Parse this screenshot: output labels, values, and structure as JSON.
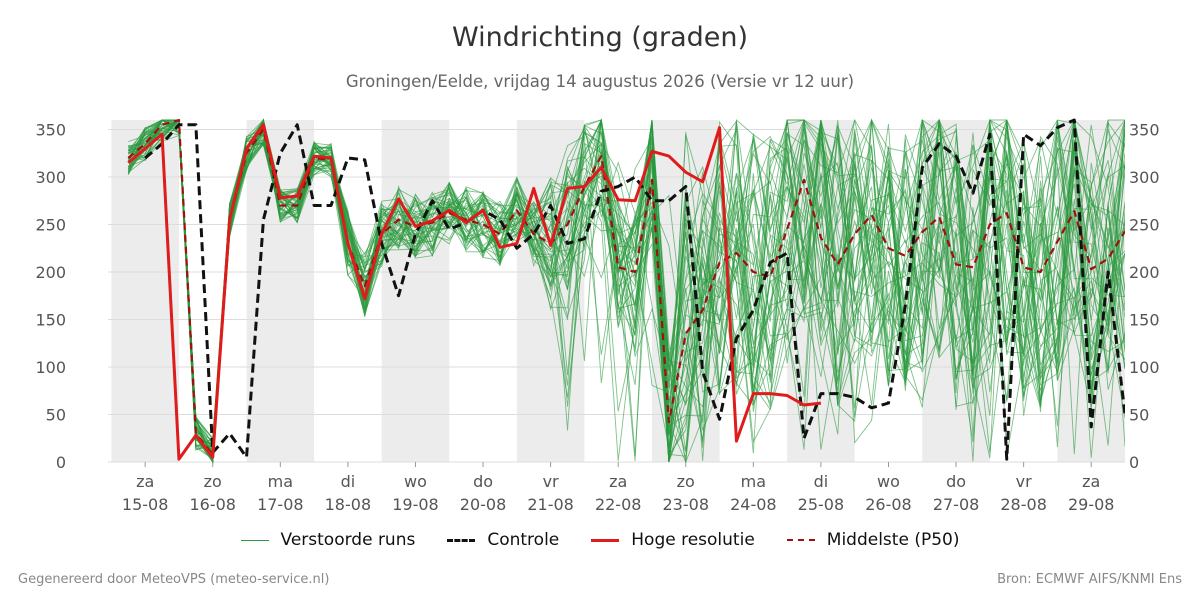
{
  "colors": {
    "ensemble": "#2a9a3d",
    "control": "#111111",
    "hires": "#e01b1b",
    "median": "#a01010",
    "weekend_band": "#ececec",
    "grid": "#dddddd"
  },
  "footer": {
    "left": "Gegenereerd door MeteoVPS (meteo-service.nl)",
    "right": "Bron: ECMWF AIFS/KNMI Ens"
  },
  "chart_data": {
    "type": "line",
    "title": "Windrichting (graden)",
    "subtitle": "Groningen/Eelde, vrijdag 14 augustus 2026 (Versie vr 12 uur)",
    "xlabel": "",
    "ylabel": "",
    "ylim": [
      0,
      360
    ],
    "yticks": [
      0,
      50,
      100,
      150,
      200,
      250,
      300,
      350
    ],
    "grid": true,
    "legend_position": "bottom",
    "x_range_days": [
      -0.25,
      14.5
    ],
    "day_ticks": [
      {
        "day": "za",
        "date": "15-08"
      },
      {
        "day": "zo",
        "date": "16-08"
      },
      {
        "day": "ma",
        "date": "17-08"
      },
      {
        "day": "di",
        "date": "18-08"
      },
      {
        "day": "wo",
        "date": "19-08"
      },
      {
        "day": "do",
        "date": "20-08"
      },
      {
        "day": "vr",
        "date": "21-08"
      },
      {
        "day": "za",
        "date": "22-08"
      },
      {
        "day": "zo",
        "date": "23-08"
      },
      {
        "day": "ma",
        "date": "24-08"
      },
      {
        "day": "di",
        "date": "25-08"
      },
      {
        "day": "wo",
        "date": "26-08"
      },
      {
        "day": "do",
        "date": "27-08"
      },
      {
        "day": "vr",
        "date": "28-08"
      },
      {
        "day": "za",
        "date": "29-08"
      }
    ],
    "shaded_days": [
      0,
      2,
      4,
      6,
      8,
      10,
      12,
      14
    ],
    "series": [
      {
        "name": "Verstoorde runs",
        "style": "ensemble",
        "values": [
          [
            318,
            330,
            355,
            5,
            20,
            10,
            260,
            340,
            350,
            10,
            270,
            275,
            310,
            320,
            230,
            185,
            240,
            255,
            248,
            252,
            262,
            255,
            250,
            240,
            265,
            245,
            240,
            275,
            280,
            290,
            240,
            230,
            250,
            220,
            200,
            210,
            190,
            230,
            240,
            200,
            210,
            220,
            250,
            230,
            240,
            220,
            230,
            250,
            240,
            200,
            230,
            250,
            240,
            230,
            220,
            250,
            230,
            240
          ]
        ],
        "note": "Ensemble members (many thin lines); values generated deterministically in script around the median."
      },
      {
        "name": "Controle",
        "style": "control",
        "values": [
          320,
          335,
          355,
          355,
          10,
          30,
          5,
          255,
          325,
          355,
          270,
          270,
          320,
          318,
          230,
          175,
          240,
          275,
          245,
          252,
          265,
          255,
          225,
          240,
          270,
          230,
          235,
          285,
          290,
          300,
          275,
          275,
          290,
          95,
          45,
          130,
          160,
          210,
          220,
          25,
          72,
          72,
          68,
          57,
          62,
          165,
          310,
          335,
          322,
          283,
          345,
          3,
          345,
          333,
          352,
          360,
          37,
          200,
          50,
          36,
          82,
          78,
          93
        ],
        "x": [
          0.0,
          0.25,
          0.5,
          0.75,
          1.0,
          1.25,
          1.5,
          1.75,
          2.0,
          2.25,
          2.5,
          2.75,
          3.0,
          3.25,
          3.5,
          3.75,
          4.0,
          4.25,
          4.5,
          4.75,
          5.0,
          5.25,
          5.5,
          5.75,
          6.0,
          6.25,
          6.5,
          6.75,
          7.0,
          7.25,
          7.5,
          7.75,
          8.0,
          8.25,
          8.5,
          8.75,
          9.0,
          9.25,
          9.5,
          9.75,
          10.0,
          10.25,
          10.5,
          10.75,
          11.0,
          11.25,
          11.5,
          11.75,
          12.0,
          12.25,
          12.5,
          12.75,
          13.0,
          13.25,
          13.5,
          13.75,
          14.0,
          14.25,
          14.5,
          14.75,
          15.0,
          15.25,
          15.5
        ]
      },
      {
        "name": "Hoge resolutie",
        "style": "hires",
        "values": [
          315,
          330,
          345,
          3,
          28,
          5,
          255,
          330,
          355,
          278,
          280,
          322,
          320,
          230,
          172,
          240,
          277,
          248,
          254,
          265,
          252,
          265,
          226,
          230,
          288,
          228,
          288,
          290,
          310,
          276,
          275,
          327,
          322,
          305,
          295,
          352,
          22,
          72,
          72,
          70,
          60,
          62
        ],
        "x": [
          -0.25,
          0.0,
          0.25,
          0.5,
          0.75,
          1.0,
          1.25,
          1.5,
          1.75,
          2.0,
          2.25,
          2.5,
          2.75,
          3.0,
          3.25,
          3.5,
          3.75,
          4.0,
          4.25,
          4.5,
          4.75,
          5.0,
          5.25,
          5.5,
          5.75,
          6.0,
          6.25,
          6.5,
          6.75,
          7.0,
          7.25,
          7.5,
          7.75,
          8.0,
          8.25,
          8.5,
          8.75,
          9.0,
          9.25,
          9.5,
          9.75,
          10.0
        ]
      },
      {
        "name": "Middelste (P50)",
        "style": "median",
        "values": [
          320,
          335,
          355,
          360,
          30,
          8,
          255,
          325,
          350,
          270,
          270,
          320,
          318,
          230,
          185,
          240,
          255,
          248,
          252,
          262,
          255,
          250,
          240,
          265,
          240,
          230,
          250,
          290,
          322,
          205,
          200,
          297,
          42,
          135,
          160,
          210,
          220,
          200,
          195,
          245,
          297,
          236,
          208,
          240,
          260,
          225,
          217,
          242,
          258,
          208,
          205,
          250,
          262,
          205,
          200,
          232,
          264,
          203,
          214,
          243
        ],
        "x": [
          -0.25,
          0.0,
          0.25,
          0.5,
          0.75,
          1.0,
          1.25,
          1.5,
          1.75,
          2.0,
          2.25,
          2.5,
          2.75,
          3.0,
          3.25,
          3.5,
          3.75,
          4.0,
          4.25,
          4.5,
          4.75,
          5.0,
          5.25,
          5.5,
          5.75,
          6.0,
          6.25,
          6.5,
          6.75,
          7.0,
          7.25,
          7.5,
          7.75,
          8.0,
          8.25,
          8.5,
          8.75,
          9.0,
          9.25,
          9.5,
          9.75,
          10.0,
          10.25,
          10.5,
          10.75,
          11.0,
          11.25,
          11.5,
          11.75,
          12.0,
          12.25,
          12.5,
          12.75,
          13.0,
          13.25,
          13.5,
          13.75,
          14.0,
          14.25,
          14.5
        ]
      }
    ]
  }
}
